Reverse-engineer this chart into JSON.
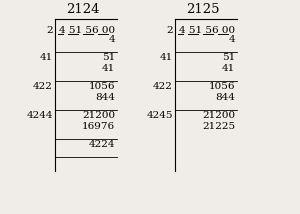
{
  "bg_color": "#f0ede8",
  "left": {
    "title": "2124",
    "divisor": "2",
    "dividend": "4 51 56 00",
    "underline_segs": [
      [
        0,
        1
      ],
      [
        2,
        4
      ],
      [
        5,
        7
      ],
      [
        8,
        10
      ]
    ],
    "rows": [
      {
        "left": "",
        "right": "4",
        "sep_after": false
      },
      {
        "left": "41",
        "right": "51",
        "sep_after": false
      },
      {
        "left": "",
        "right": "41",
        "sep_after": true
      },
      {
        "left": "422",
        "right": "1056",
        "sep_after": false
      },
      {
        "left": "",
        "right": "844",
        "sep_after": true
      },
      {
        "left": "4244",
        "right": "21200",
        "sep_after": false
      },
      {
        "left": "",
        "right": "16976",
        "sep_after": true
      },
      {
        "left": "",
        "right": "4224",
        "sep_after": true
      }
    ]
  },
  "right": {
    "title": "2125",
    "divisor": "2",
    "dividend": "4 51 56 00",
    "underline_segs": [
      [
        0,
        1
      ],
      [
        2,
        4
      ],
      [
        5,
        7
      ],
      [
        8,
        10
      ]
    ],
    "rows": [
      {
        "left": "",
        "right": "4",
        "sep_after": false
      },
      {
        "left": "41",
        "right": "51",
        "sep_after": false
      },
      {
        "left": "",
        "right": "41",
        "sep_after": true
      },
      {
        "left": "422",
        "right": "1056",
        "sep_after": false
      },
      {
        "left": "",
        "right": "844",
        "sep_after": true
      },
      {
        "left": "4245",
        "right": "21200",
        "sep_after": false
      },
      {
        "left": "",
        "right": "21225",
        "sep_after": false
      }
    ]
  },
  "font_size": 7.5,
  "title_font_size": 9.5
}
